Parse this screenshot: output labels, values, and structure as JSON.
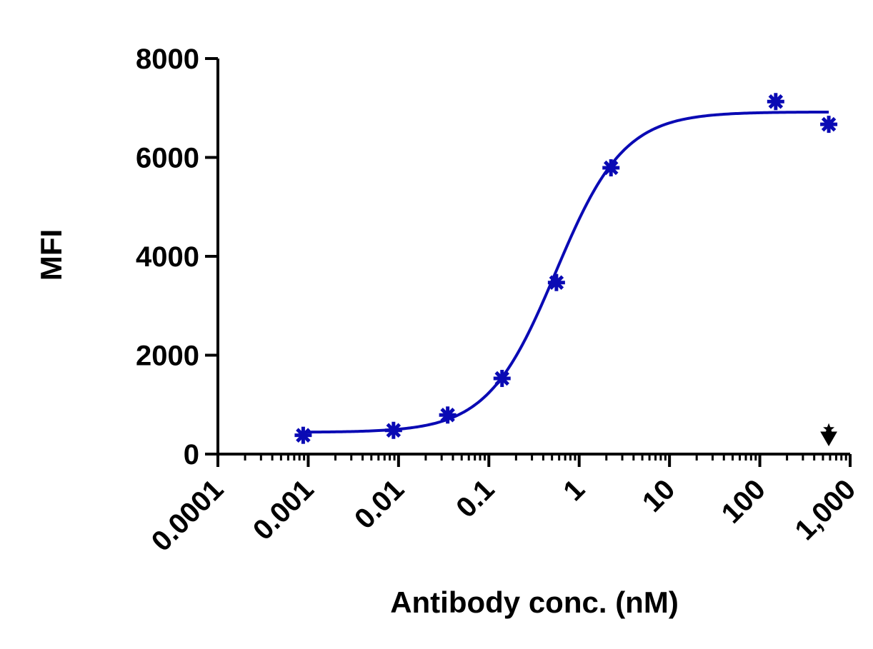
{
  "chart_data": {
    "type": "scatter",
    "title": "",
    "xlabel": "Antibody conc. (nM)",
    "ylabel": "MFI",
    "x_scale": "log",
    "xlim": [
      0.0001,
      1000
    ],
    "ylim": [
      0,
      8000
    ],
    "x_ticks": [
      0.0001,
      0.001,
      0.01,
      0.1,
      1,
      10,
      100,
      1000
    ],
    "x_tick_labels": [
      "0.0001",
      "0.001",
      "0.01",
      "0.1",
      "1",
      "10",
      "100",
      "1,000"
    ],
    "y_ticks": [
      0,
      2000,
      4000,
      6000,
      8000
    ],
    "y_tick_labels": [
      "0",
      "2000",
      "4000",
      "6000",
      "8000"
    ],
    "grid": false,
    "legend": "none",
    "color": "#0a0ab4",
    "series": [
      {
        "marker": "asterisk",
        "x": [
          0.00088,
          0.0088,
          0.035,
          0.14,
          0.56,
          2.25,
          150,
          580
        ],
        "y": [
          380,
          480,
          790,
          1530,
          3470,
          5790,
          7130,
          6670
        ]
      }
    ],
    "fit_curve": {
      "model": "4PL",
      "bottom": 440,
      "top": 6920,
      "ec50": 0.55,
      "hill": 1.15,
      "x_range": [
        0.00088,
        580
      ]
    },
    "annotations": [
      {
        "marker": "arrow-down-with-star",
        "x": 580,
        "y_position": "above-x-axis",
        "color": "#000000"
      }
    ]
  }
}
